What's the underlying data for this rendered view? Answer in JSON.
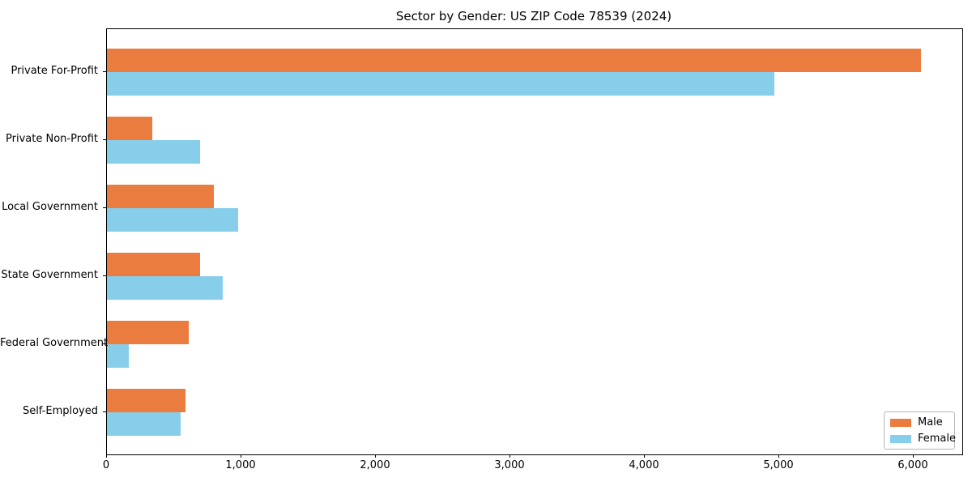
{
  "title": "Sector by Gender: US ZIP Code 78539 (2024)",
  "colors": {
    "male": "#e97c3e",
    "female": "#87ceeb",
    "spine": "#000000",
    "legend_border": "#b7b7b7"
  },
  "chart_data": {
    "type": "bar",
    "orientation": "horizontal",
    "title": "Sector by Gender: US ZIP Code 78539 (2024)",
    "xlabel": "",
    "ylabel": "",
    "grid": false,
    "legend_position": "lower right",
    "categories": [
      "Private For-Profit",
      "Private Non-Profit",
      "Local Government",
      "State Government",
      "Federal Government",
      "Self-Employed"
    ],
    "series": [
      {
        "name": "Male",
        "color": "#e97c3e",
        "values": [
          6050,
          340,
          795,
          690,
          610,
          585
        ]
      },
      {
        "name": "Female",
        "color": "#87ceeb",
        "values": [
          4965,
          690,
          975,
          860,
          160,
          550
        ]
      }
    ],
    "xlim": [
      0,
      6360
    ],
    "xticks": [
      0,
      1000,
      2000,
      3000,
      4000,
      5000,
      6000
    ],
    "xtick_labels": [
      "0",
      "1,000",
      "2,000",
      "3,000",
      "4,000",
      "5,000",
      "6,000"
    ]
  },
  "legend": {
    "items": [
      {
        "label": "Male"
      },
      {
        "label": "Female"
      }
    ]
  }
}
